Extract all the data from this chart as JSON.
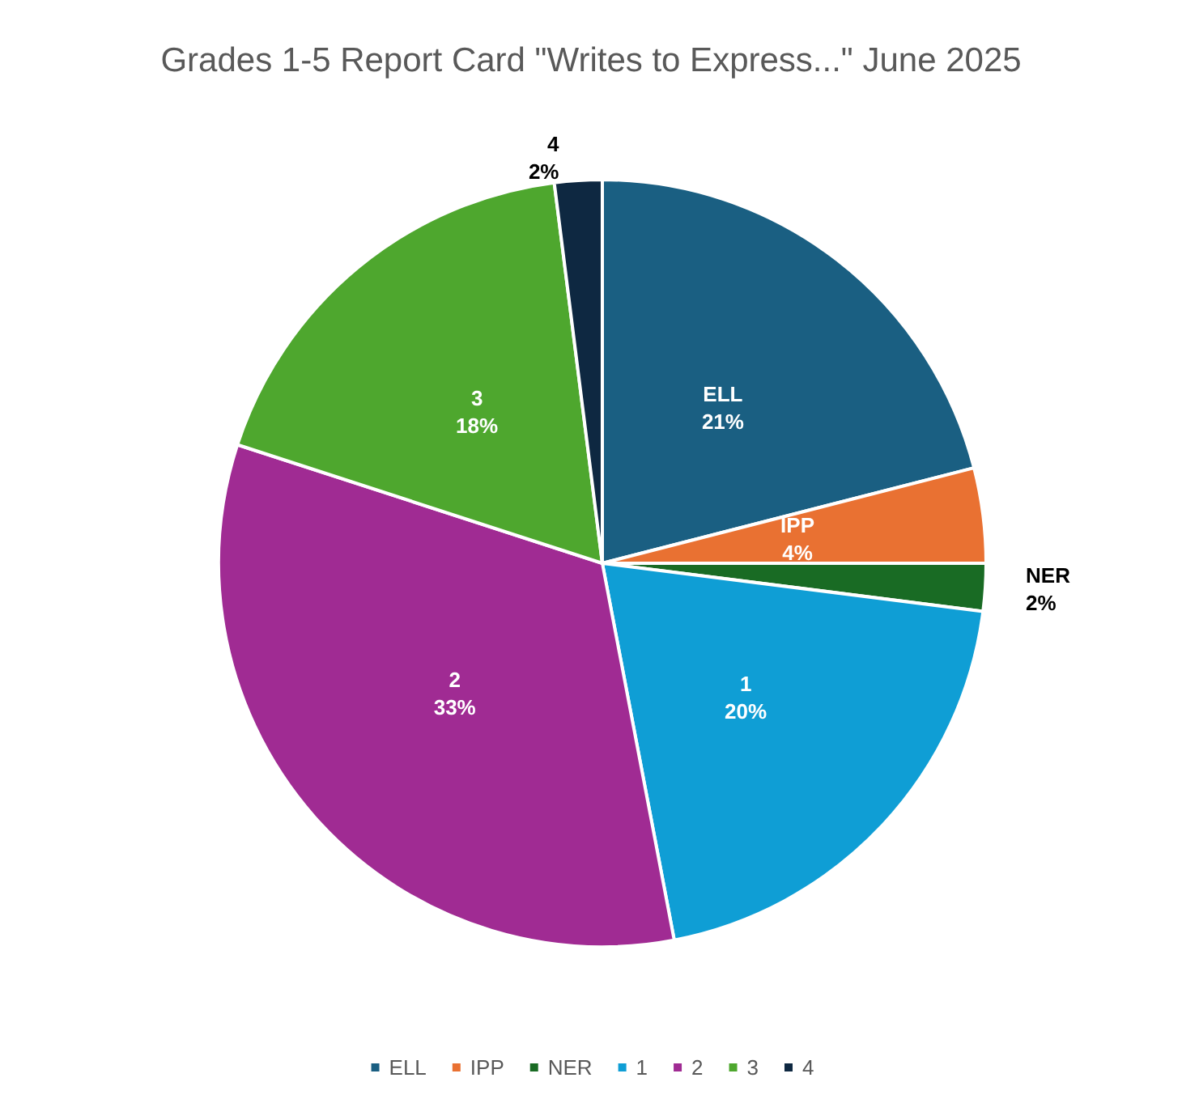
{
  "chart_data": {
    "type": "pie",
    "title": "Grades 1-5 Report Card \"Writes to Express...\" June 2025",
    "categories": [
      "ELL",
      "IPP",
      "NER",
      "1",
      "2",
      "3",
      "4"
    ],
    "values": [
      21,
      4,
      2,
      20,
      33,
      18,
      2
    ],
    "value_labels": [
      "21%",
      "4%",
      "2%",
      "20%",
      "33%",
      "18%",
      "2%"
    ],
    "colors": [
      "#1a5f82",
      "#e97132",
      "#196b24",
      "#0f9ed5",
      "#a02b93",
      "#4ea72e",
      "#0e2841"
    ],
    "legend": "bottom"
  }
}
